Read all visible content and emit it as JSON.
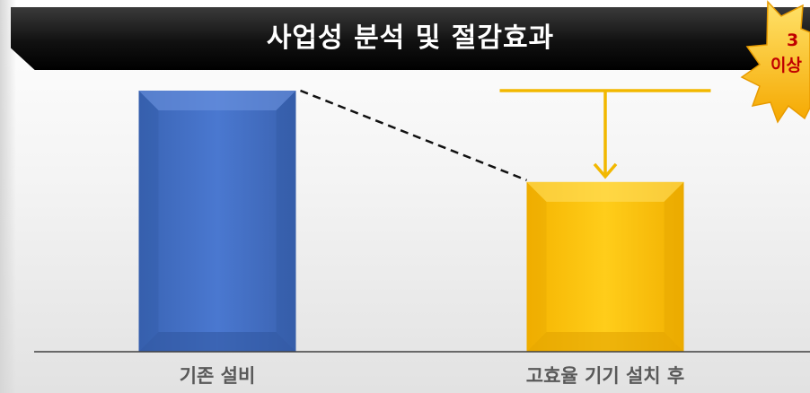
{
  "title": "사업성 분석 및 절감효과",
  "badge": {
    "line1": "3",
    "line2": "이상"
  },
  "chart_data": {
    "type": "bar",
    "categories": [
      "기존 설비",
      "고효율 기기 설치 후"
    ],
    "values": [
      100,
      65
    ],
    "ylim": [
      0,
      100
    ],
    "grid": false,
    "legend": "none",
    "bar_colors": [
      "#4472c4",
      "#ffc000"
    ],
    "annotations": [
      "dashed line connecting bar tops",
      "downward arrow indicating reduction"
    ]
  },
  "colors": {
    "title_bar": "#000000",
    "title_text": "#ffffff",
    "badge_star": "#ffc000",
    "badge_text": "#c00000",
    "axis": "#404040",
    "arrow": "#f2b800",
    "label_text": "#595959"
  }
}
